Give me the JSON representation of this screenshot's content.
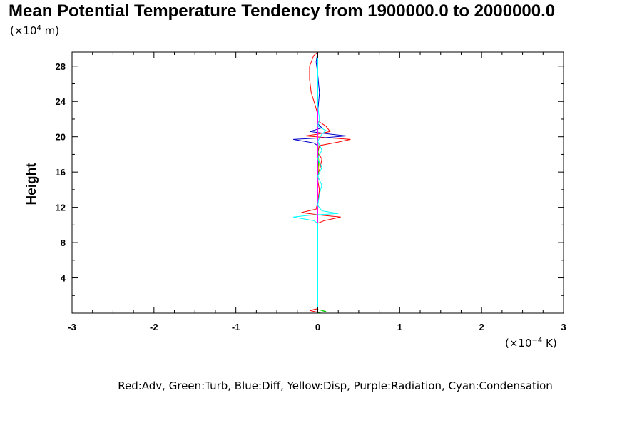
{
  "chart_data": {
    "type": "line",
    "title": "Mean Potential Temperature Tendency from 1900000.0 to 2000000.0",
    "ylabel": "Height",
    "y_unit": {
      "prefix": "(×10",
      "exp": "4",
      "suffix": " m)"
    },
    "x_unit": {
      "prefix": "(×10",
      "exp": "−4",
      "suffix": " K)"
    },
    "legend_text": "Red:Adv, Green:Turb, Blue:Diff, Yellow:Disp, Purple:Radiation, Cyan:Condensation",
    "xlim": [
      -3,
      3
    ],
    "ylim": [
      0,
      29.6
    ],
    "x_ticks": [
      -3,
      -2,
      -1,
      0,
      1,
      2,
      3
    ],
    "y_ticks": [
      4,
      8,
      12,
      16,
      20,
      24,
      28
    ],
    "grid": false,
    "series": [
      {
        "color": "#ff0000",
        "points": [
          [
            0,
            0.1
          ],
          [
            -0.1,
            0.3
          ],
          [
            0,
            0.5
          ],
          [
            0,
            10.2
          ],
          [
            0.08,
            10.5
          ],
          [
            0.28,
            10.9
          ],
          [
            0.05,
            11.1
          ],
          [
            -0.2,
            11.4
          ],
          [
            -0.02,
            11.8
          ],
          [
            0,
            12.6
          ],
          [
            0.02,
            14.0
          ],
          [
            -0.01,
            15.5
          ],
          [
            0.03,
            16.5
          ],
          [
            0.05,
            17.5
          ],
          [
            0,
            18.2
          ],
          [
            0.02,
            19.0
          ],
          [
            0.25,
            19.4
          ],
          [
            0.4,
            19.7
          ],
          [
            0.1,
            19.9
          ],
          [
            -0.15,
            20.1
          ],
          [
            0.0,
            20.3
          ],
          [
            0.15,
            20.6
          ],
          [
            0.1,
            21.2
          ],
          [
            0.0,
            21.8
          ],
          [
            0,
            22.5
          ],
          [
            -0.03,
            23.5
          ],
          [
            -0.08,
            25.0
          ],
          [
            -0.1,
            26.5
          ],
          [
            -0.1,
            28.0
          ],
          [
            -0.05,
            29.2
          ],
          [
            0,
            29.6
          ]
        ]
      },
      {
        "color": "#00cc00",
        "points": [
          [
            0,
            0.05
          ],
          [
            0.1,
            0.2
          ],
          [
            0,
            0.4
          ],
          [
            0,
            14.5
          ],
          [
            0.01,
            17.0
          ],
          [
            0,
            19.8
          ],
          [
            0,
            29.6
          ]
        ]
      },
      {
        "color": "#0000cc",
        "points": [
          [
            0,
            0.1
          ],
          [
            0,
            19.0
          ],
          [
            -0.05,
            19.3
          ],
          [
            -0.3,
            19.7
          ],
          [
            0.1,
            19.9
          ],
          [
            0.35,
            20.1
          ],
          [
            0.15,
            20.3
          ],
          [
            -0.1,
            20.6
          ],
          [
            0.05,
            21.0
          ],
          [
            0,
            21.5
          ],
          [
            0,
            22.8
          ],
          [
            0.02,
            25.0
          ],
          [
            0,
            27.0
          ],
          [
            -0.02,
            28.5
          ],
          [
            0,
            29.6
          ]
        ]
      },
      {
        "color": "#cccc00",
        "points": [
          [
            0,
            0.1
          ],
          [
            0,
            16.0
          ],
          [
            0.02,
            17.0
          ],
          [
            0,
            18.0
          ],
          [
            0,
            29.6
          ]
        ]
      },
      {
        "color": "#ff00ff",
        "points": [
          [
            0,
            0.1
          ],
          [
            0,
            29.6
          ]
        ]
      },
      {
        "color": "#00ffff",
        "points": [
          [
            0,
            0.1
          ],
          [
            0,
            10.2
          ],
          [
            -0.05,
            10.5
          ],
          [
            -0.3,
            10.9
          ],
          [
            -0.1,
            11.1
          ],
          [
            0.25,
            11.3
          ],
          [
            0.05,
            11.6
          ],
          [
            0,
            12.2
          ],
          [
            0.02,
            13.5
          ],
          [
            0.05,
            14.5
          ],
          [
            0,
            15.5
          ],
          [
            0.05,
            16.5
          ],
          [
            0,
            17.5
          ],
          [
            0.05,
            18.5
          ],
          [
            0,
            19.5
          ],
          [
            0.05,
            20.3
          ],
          [
            0.1,
            20.7
          ],
          [
            0,
            21.2
          ],
          [
            0.02,
            22.0
          ],
          [
            0,
            23.5
          ],
          [
            0,
            29.6
          ]
        ]
      }
    ]
  }
}
